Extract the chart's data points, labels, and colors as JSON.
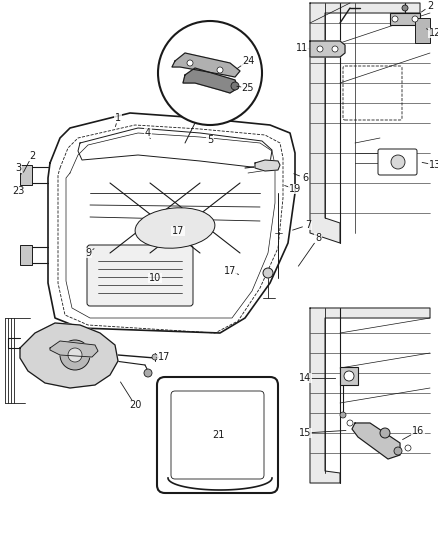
{
  "bg_color": "#ffffff",
  "line_color": "#1a1a1a",
  "fig_width": 4.38,
  "fig_height": 5.33,
  "dpi": 100,
  "font_size": 7.0
}
